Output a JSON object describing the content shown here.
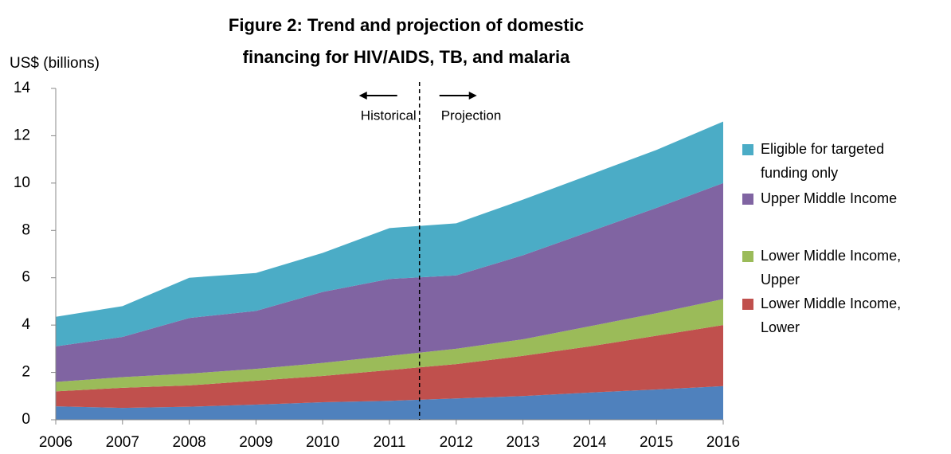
{
  "chart_data": {
    "type": "stacked_area",
    "title": "Figure 2: Trend and projection of domestic financing for HIV/AIDS, TB, and malaria",
    "y_label": "US$ (billions)",
    "x": [
      2006,
      2007,
      2008,
      2009,
      2010,
      2011,
      2012,
      2013,
      2014,
      2015,
      2016
    ],
    "xlim": [
      2006,
      2016
    ],
    "xticks": [
      2006,
      2007,
      2008,
      2009,
      2010,
      2011,
      2012,
      2013,
      2014,
      2015,
      2016
    ],
    "ylim": [
      0,
      14
    ],
    "yticks": [
      0,
      2,
      4,
      6,
      8,
      10,
      12,
      14
    ],
    "series": [
      {
        "color": "#4f81bd",
        "values": [
          0.57,
          0.5,
          0.55,
          0.64,
          0.74,
          0.8,
          0.9,
          1.0,
          1.15,
          1.28,
          1.42
        ]
      },
      {
        "name": "Lower Middle Income, Lower",
        "color": "#c0504d",
        "values": [
          0.63,
          0.85,
          0.9,
          1.01,
          1.11,
          1.3,
          1.45,
          1.7,
          1.95,
          2.27,
          2.58
        ]
      },
      {
        "name": "Lower Middle Income, Upper",
        "color": "#9bbb59",
        "values": [
          0.4,
          0.45,
          0.5,
          0.5,
          0.55,
          0.6,
          0.65,
          0.7,
          0.85,
          0.95,
          1.1
        ]
      },
      {
        "name": "Upper Middle Income",
        "color": "#8064a2",
        "values": [
          1.5,
          1.7,
          2.35,
          2.45,
          3.0,
          3.25,
          3.1,
          3.55,
          4.0,
          4.45,
          4.9
        ]
      },
      {
        "name": "Eligible for targeted funding only",
        "color": "#4bacc6",
        "values": [
          1.25,
          1.3,
          1.7,
          1.6,
          1.65,
          2.15,
          2.2,
          2.35,
          2.4,
          2.45,
          2.6
        ]
      }
    ],
    "annotations": {
      "divider_x": 2011.45,
      "left": "Historical",
      "right": "Projection"
    },
    "legend": "right"
  }
}
